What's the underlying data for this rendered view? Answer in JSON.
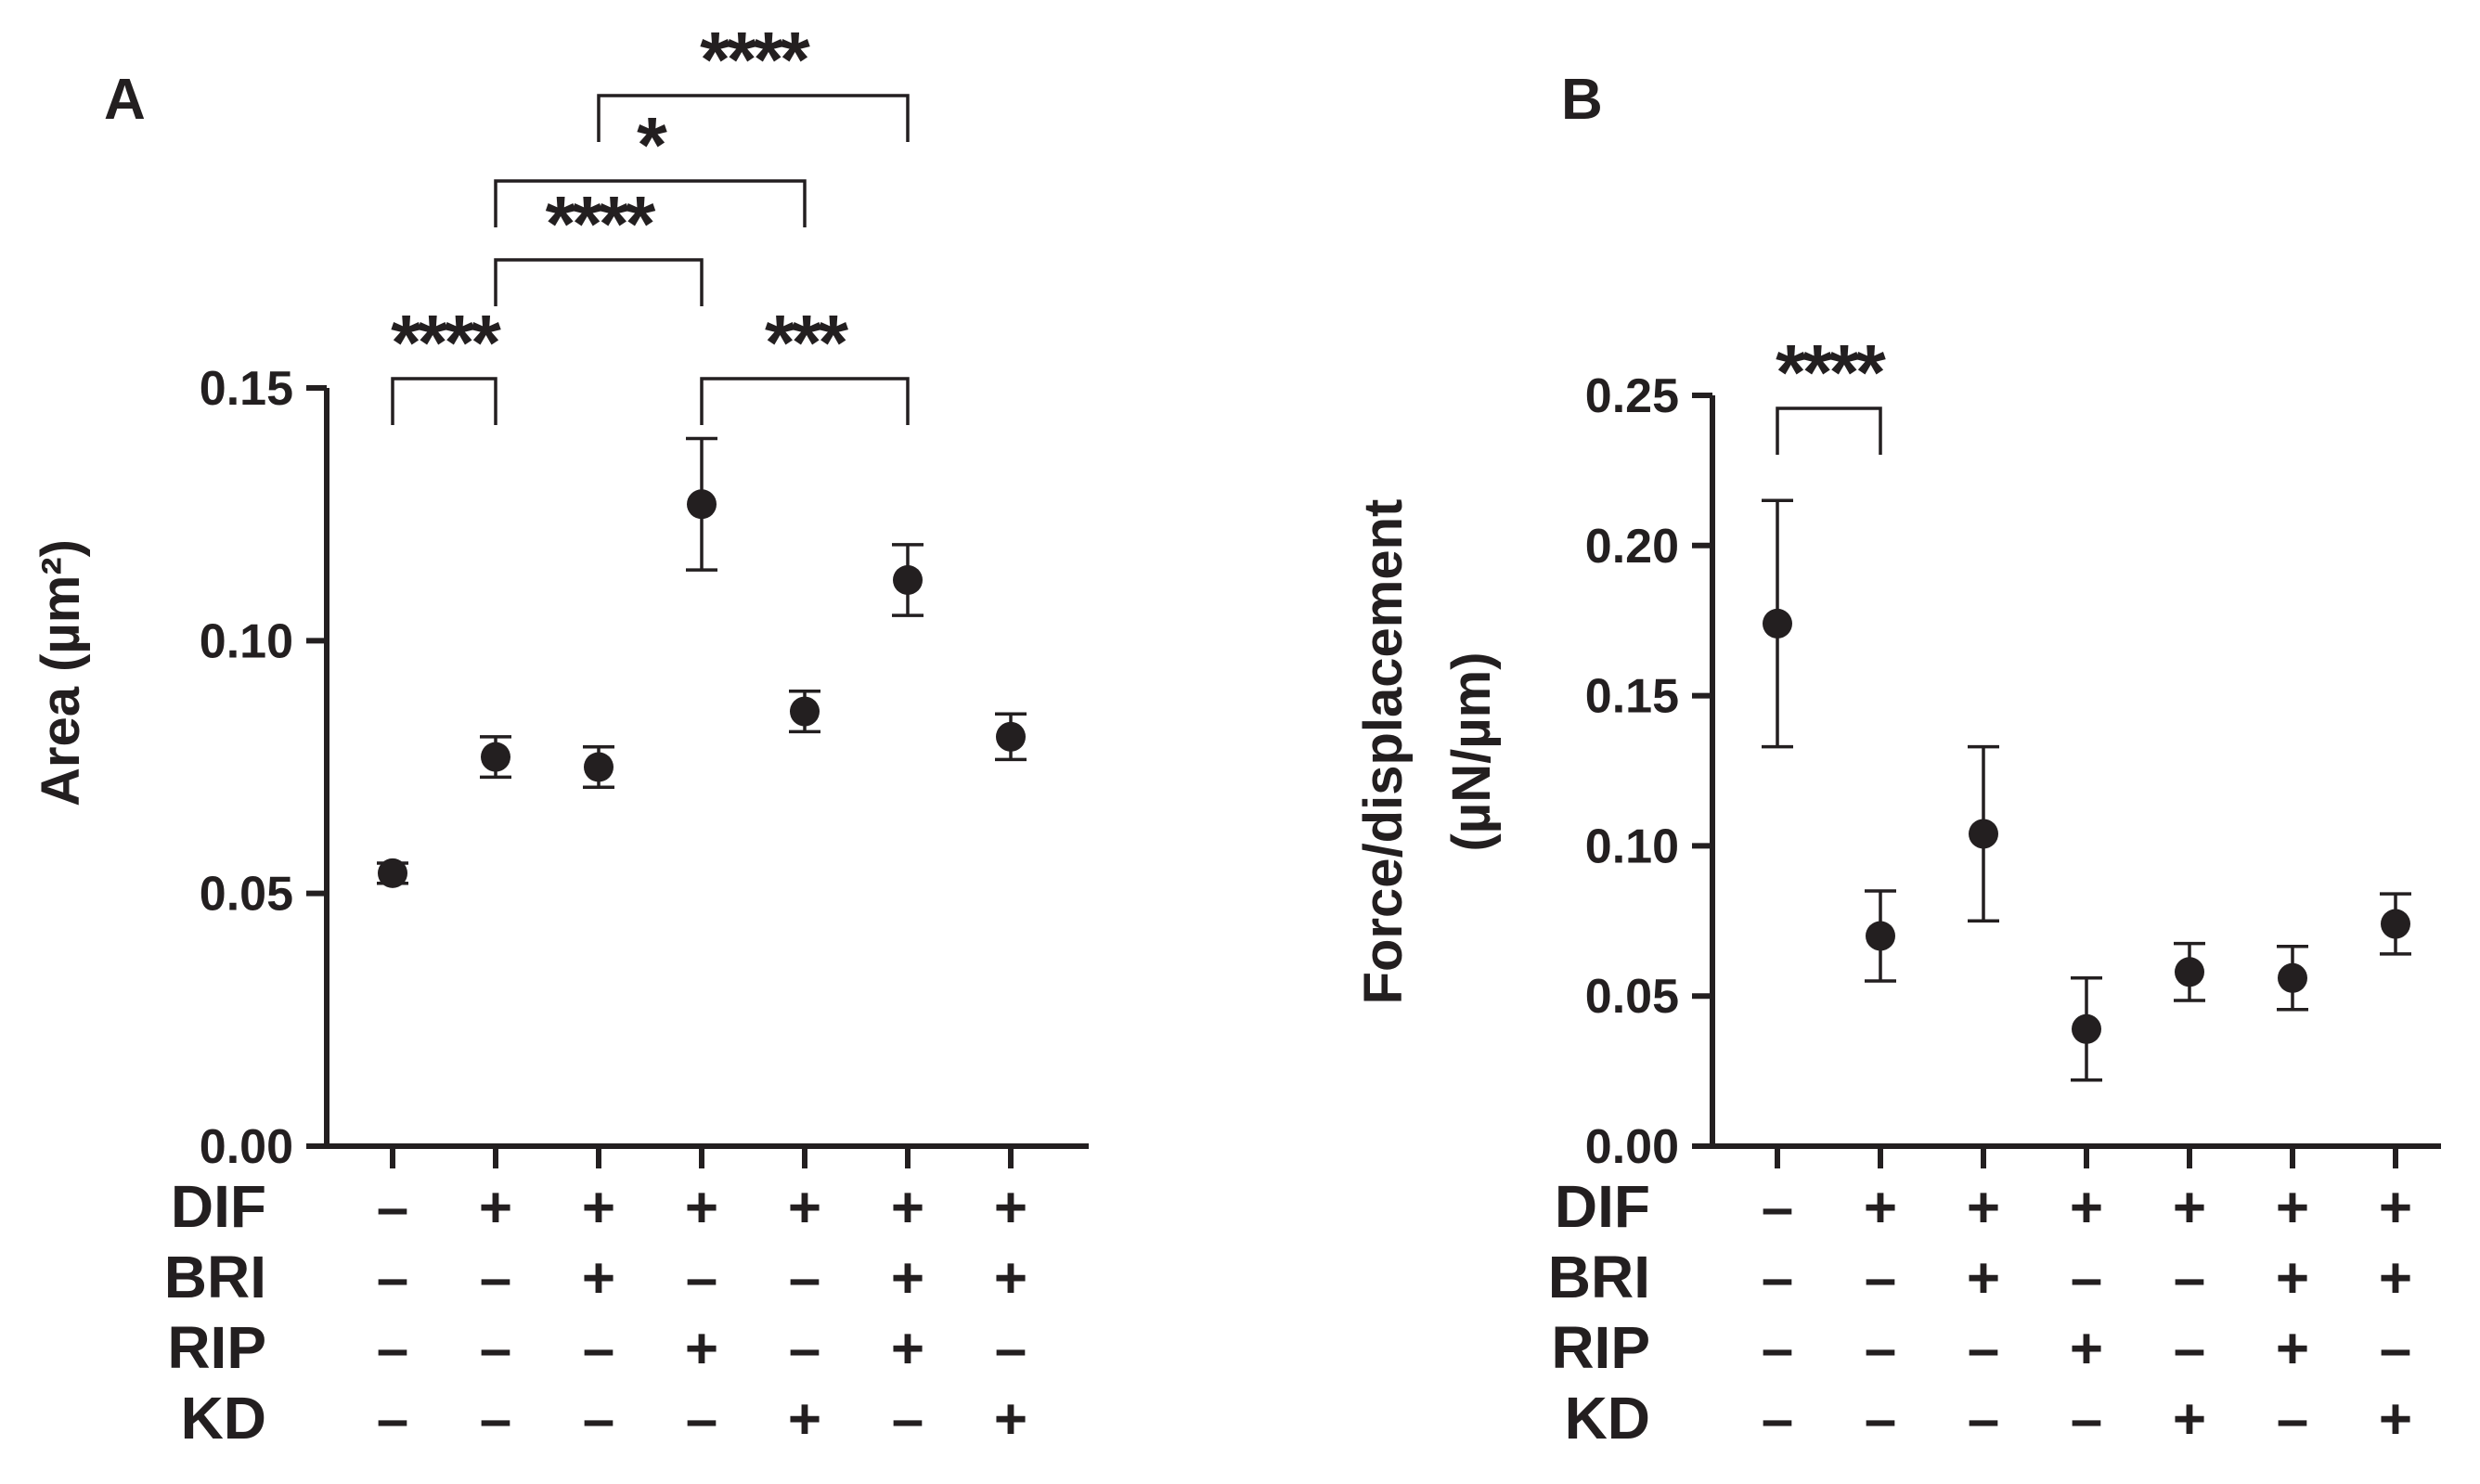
{
  "colors": {
    "ink": "#231f20",
    "background": "#ffffff"
  },
  "chart_data": [
    {
      "type": "scatter",
      "panel_label": "A",
      "ylabel": "Area (µm²)",
      "ylim": [
        0,
        0.15
      ],
      "yticks": [
        0.0,
        0.05,
        0.1,
        0.15
      ],
      "ytick_labels": [
        "0.00",
        "0.05",
        "0.10",
        "0.15"
      ],
      "groups": 7,
      "means": [
        0.054,
        0.077,
        0.075,
        0.127,
        0.086,
        0.112,
        0.081
      ],
      "errors": [
        0.002,
        0.004,
        0.004,
        0.013,
        0.004,
        0.007,
        0.0045
      ],
      "condition_rows": [
        {
          "label": "DIF",
          "signs": [
            "–",
            "+",
            "+",
            "+",
            "+",
            "+",
            "+"
          ]
        },
        {
          "label": "BRI",
          "signs": [
            "–",
            "–",
            "+",
            "–",
            "–",
            "+",
            "+"
          ]
        },
        {
          "label": "RIP",
          "signs": [
            "–",
            "–",
            "–",
            "+",
            "–",
            "+",
            "–"
          ]
        },
        {
          "label": "KD",
          "signs": [
            "–",
            "–",
            "–",
            "–",
            "+",
            "–",
            "+"
          ]
        }
      ],
      "significance": [
        {
          "from": 0,
          "to": 1,
          "label": "****"
        },
        {
          "from": 3,
          "to": 5,
          "label": "***"
        },
        {
          "from": 1,
          "to": 3,
          "label": "****"
        },
        {
          "from": 1,
          "to": 4,
          "label": "*"
        },
        {
          "from": 2,
          "to": 5,
          "label": "****"
        }
      ]
    },
    {
      "type": "scatter",
      "panel_label": "B",
      "ylabel_line1": "Force/displacement",
      "ylabel_line2": "(µN/µm)",
      "ylim": [
        0,
        0.25
      ],
      "yticks": [
        0.0,
        0.05,
        0.1,
        0.15,
        0.2,
        0.25
      ],
      "ytick_labels": [
        "0.00",
        "0.05",
        "0.10",
        "0.15",
        "0.20",
        "0.25"
      ],
      "groups": 7,
      "means": [
        0.174,
        0.07,
        0.104,
        0.039,
        0.058,
        0.056,
        0.074
      ],
      "errors": [
        0.041,
        0.015,
        0.029,
        0.017,
        0.0095,
        0.0105,
        0.01
      ],
      "condition_rows": [
        {
          "label": "DIF",
          "signs": [
            "–",
            "+",
            "+",
            "+",
            "+",
            "+",
            "+"
          ]
        },
        {
          "label": "BRI",
          "signs": [
            "–",
            "–",
            "+",
            "–",
            "–",
            "+",
            "+"
          ]
        },
        {
          "label": "RIP",
          "signs": [
            "–",
            "–",
            "–",
            "+",
            "–",
            "+",
            "–"
          ]
        },
        {
          "label": "KD",
          "signs": [
            "–",
            "–",
            "–",
            "–",
            "+",
            "–",
            "+"
          ]
        }
      ],
      "significance": [
        {
          "from": 0,
          "to": 1,
          "label": "****"
        }
      ]
    }
  ]
}
